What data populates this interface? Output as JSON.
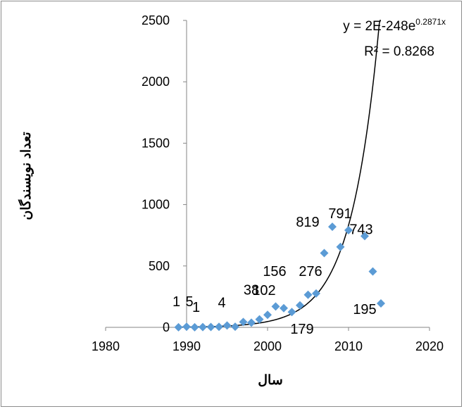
{
  "chart_data": {
    "type": "scatter",
    "title": "",
    "xlabel": "سال",
    "ylabel": "تعداد نویسندگان",
    "xlim": [
      1980,
      2020
    ],
    "ylim": [
      0,
      2500
    ],
    "xticks": [
      1980,
      1990,
      2000,
      2010,
      2020
    ],
    "yticks": [
      0,
      500,
      1000,
      1500,
      2000,
      2500
    ],
    "grid": false,
    "marker_color": "#5b9bd5",
    "trendline_color": "#000000",
    "series": [
      {
        "x": [
          1989,
          1990,
          1991,
          1992,
          1993,
          1994,
          1995,
          1996,
          1997,
          1998,
          1999,
          2000,
          2001,
          2002,
          2003,
          2004,
          2005,
          2006,
          2007,
          2008,
          2009,
          2010,
          2012,
          2013,
          2014
        ],
        "y": [
          1,
          5,
          1,
          2,
          3,
          4,
          15,
          5,
          44,
          38,
          65,
          102,
          170,
          156,
          125,
          179,
          265,
          276,
          605,
          819,
          655,
          791,
          743,
          455,
          195
        ]
      }
    ],
    "trendline": {
      "type": "exponential",
      "a": 2e-248,
      "b": 0.2871,
      "x_start": 1989,
      "x_end": 2014
    },
    "equation_text": {
      "prefix": "y = 2E-248e",
      "exponent": "0.2871x",
      "r2": "R² = 0.8268"
    },
    "data_labels": [
      {
        "text": "1",
        "x": 1989,
        "y": 1
      },
      {
        "text": "5",
        "x": 1990,
        "y": 5
      },
      {
        "text": "1",
        "x": 1991,
        "y": 1
      },
      {
        "text": "4",
        "x": 1994,
        "y": 4
      },
      {
        "text": "38",
        "x": 1998,
        "y": 38
      },
      {
        "text": "102",
        "x": 2000,
        "y": 102
      },
      {
        "text": "156",
        "x": 2002,
        "y": 156
      },
      {
        "text": "179",
        "x": 2004,
        "y": 179
      },
      {
        "text": "276",
        "x": 2006,
        "y": 276
      },
      {
        "text": "819",
        "x": 2008,
        "y": 819
      },
      {
        "text": "791",
        "x": 2010,
        "y": 791
      },
      {
        "text": "743",
        "x": 2012,
        "y": 743
      },
      {
        "text": "195",
        "x": 2014,
        "y": 195
      }
    ]
  }
}
